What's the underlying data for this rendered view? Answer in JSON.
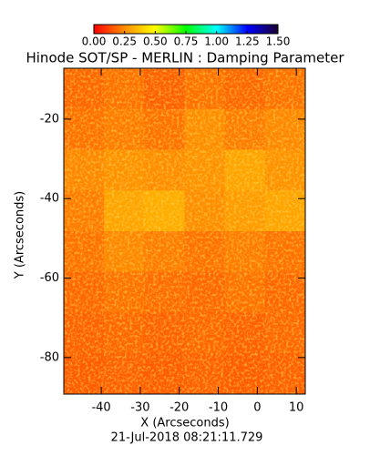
{
  "chart_data": {
    "type": "heatmap",
    "title": "Hinode SOT/SP - MERLIN : Damping Parameter",
    "xlabel": "X (Arcseconds)",
    "ylabel": "Y (Arcseconds)",
    "footer": "21-Jul-2018 08:21:11.729",
    "xlim": [
      -49.6,
      12.3
    ],
    "xticks": [
      -40,
      -30,
      -20,
      -10,
      0,
      10
    ],
    "ylim": [
      -89.2,
      -7.2
    ],
    "yticks": [
      -80,
      -60,
      -40,
      -20
    ],
    "zlim": [
      0,
      1.5
    ],
    "zticks": [
      {
        "value": 0,
        "label": "0.00"
      },
      {
        "value": 0.25,
        "label": "0.25"
      },
      {
        "value": 0.5,
        "label": "0.50"
      },
      {
        "value": 0.75,
        "label": "0.75"
      },
      {
        "value": 1,
        "label": "1.00"
      },
      {
        "value": 1.25,
        "label": "1.25"
      },
      {
        "value": 1.5,
        "label": "1.50"
      }
    ],
    "colormap": [
      "#ff0000",
      "#ff8c00",
      "#ffff00",
      "#00ff00",
      "#00ffff",
      "#0000ff",
      "#1a0030"
    ],
    "z": [
      [
        0.18,
        0.2,
        0.17,
        0.2,
        0.18,
        0.2
      ],
      [
        0.2,
        0.22,
        0.2,
        0.25,
        0.22,
        0.24
      ],
      [
        0.24,
        0.26,
        0.25,
        0.26,
        0.3,
        0.26
      ],
      [
        0.22,
        0.3,
        0.32,
        0.25,
        0.28,
        0.3
      ],
      [
        0.2,
        0.24,
        0.22,
        0.2,
        0.22,
        0.2
      ],
      [
        0.18,
        0.2,
        0.19,
        0.18,
        0.2,
        0.18
      ],
      [
        0.17,
        0.18,
        0.17,
        0.18,
        0.17,
        0.18
      ],
      [
        0.16,
        0.17,
        0.16,
        0.17,
        0.16,
        0.17
      ]
    ]
  }
}
